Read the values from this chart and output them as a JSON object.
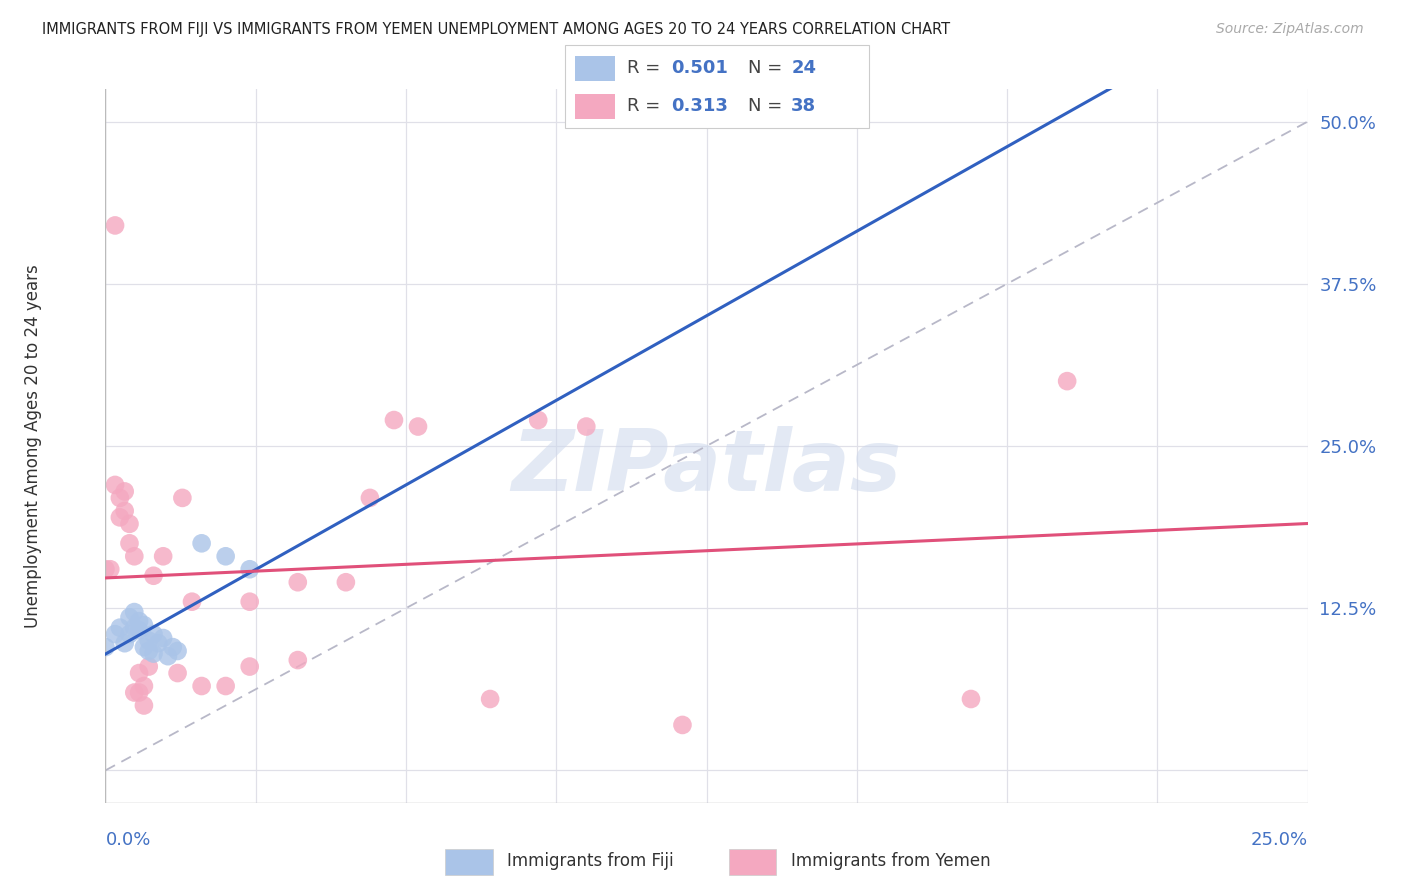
{
  "title": "IMMIGRANTS FROM FIJI VS IMMIGRANTS FROM YEMEN UNEMPLOYMENT AMONG AGES 20 TO 24 YEARS CORRELATION CHART",
  "source": "Source: ZipAtlas.com",
  "ylabel": "Unemployment Among Ages 20 to 24 years",
  "ylabel_right_ticks": [
    0.0,
    0.125,
    0.25,
    0.375,
    0.5
  ],
  "ylabel_right_labels": [
    "",
    "12.5%",
    "25.0%",
    "37.5%",
    "50.0%"
  ],
  "xmin": 0.0,
  "xmax": 0.25,
  "ymin": -0.025,
  "ymax": 0.525,
  "fiji_R": 0.501,
  "fiji_N": 24,
  "yemen_R": 0.313,
  "yemen_N": 38,
  "fiji_color": "#aac4e8",
  "yemen_color": "#f4a8c0",
  "fiji_line_color": "#3060c0",
  "yemen_line_color": "#e0507a",
  "ref_line_color": "#b8b8c8",
  "watermark_color": "#ccd8ec",
  "background_color": "#ffffff",
  "grid_color": "#e0e0e8",
  "fiji_scatter": [
    [
      0.0,
      0.095
    ],
    [
      0.002,
      0.105
    ],
    [
      0.003,
      0.11
    ],
    [
      0.004,
      0.098
    ],
    [
      0.005,
      0.118
    ],
    [
      0.005,
      0.105
    ],
    [
      0.006,
      0.122
    ],
    [
      0.006,
      0.11
    ],
    [
      0.007,
      0.115
    ],
    [
      0.007,
      0.108
    ],
    [
      0.008,
      0.112
    ],
    [
      0.008,
      0.095
    ],
    [
      0.009,
      0.1
    ],
    [
      0.009,
      0.092
    ],
    [
      0.01,
      0.105
    ],
    [
      0.01,
      0.09
    ],
    [
      0.011,
      0.098
    ],
    [
      0.012,
      0.102
    ],
    [
      0.013,
      0.088
    ],
    [
      0.014,
      0.095
    ],
    [
      0.015,
      0.092
    ],
    [
      0.02,
      0.175
    ],
    [
      0.025,
      0.165
    ],
    [
      0.03,
      0.155
    ]
  ],
  "yemen_scatter": [
    [
      0.0,
      0.155
    ],
    [
      0.001,
      0.155
    ],
    [
      0.002,
      0.42
    ],
    [
      0.002,
      0.22
    ],
    [
      0.003,
      0.21
    ],
    [
      0.003,
      0.195
    ],
    [
      0.004,
      0.215
    ],
    [
      0.004,
      0.2
    ],
    [
      0.005,
      0.19
    ],
    [
      0.005,
      0.175
    ],
    [
      0.006,
      0.165
    ],
    [
      0.006,
      0.06
    ],
    [
      0.007,
      0.075
    ],
    [
      0.007,
      0.06
    ],
    [
      0.008,
      0.065
    ],
    [
      0.008,
      0.05
    ],
    [
      0.009,
      0.08
    ],
    [
      0.01,
      0.15
    ],
    [
      0.012,
      0.165
    ],
    [
      0.015,
      0.075
    ],
    [
      0.016,
      0.21
    ],
    [
      0.018,
      0.13
    ],
    [
      0.02,
      0.065
    ],
    [
      0.025,
      0.065
    ],
    [
      0.03,
      0.13
    ],
    [
      0.03,
      0.08
    ],
    [
      0.04,
      0.145
    ],
    [
      0.04,
      0.085
    ],
    [
      0.05,
      0.145
    ],
    [
      0.055,
      0.21
    ],
    [
      0.06,
      0.27
    ],
    [
      0.065,
      0.265
    ],
    [
      0.08,
      0.055
    ],
    [
      0.09,
      0.27
    ],
    [
      0.1,
      0.265
    ],
    [
      0.12,
      0.035
    ],
    [
      0.18,
      0.055
    ],
    [
      0.2,
      0.3
    ]
  ],
  "bottom_legend_fiji": "Immigrants from Fiji",
  "bottom_legend_yemen": "Immigrants from Yemen"
}
